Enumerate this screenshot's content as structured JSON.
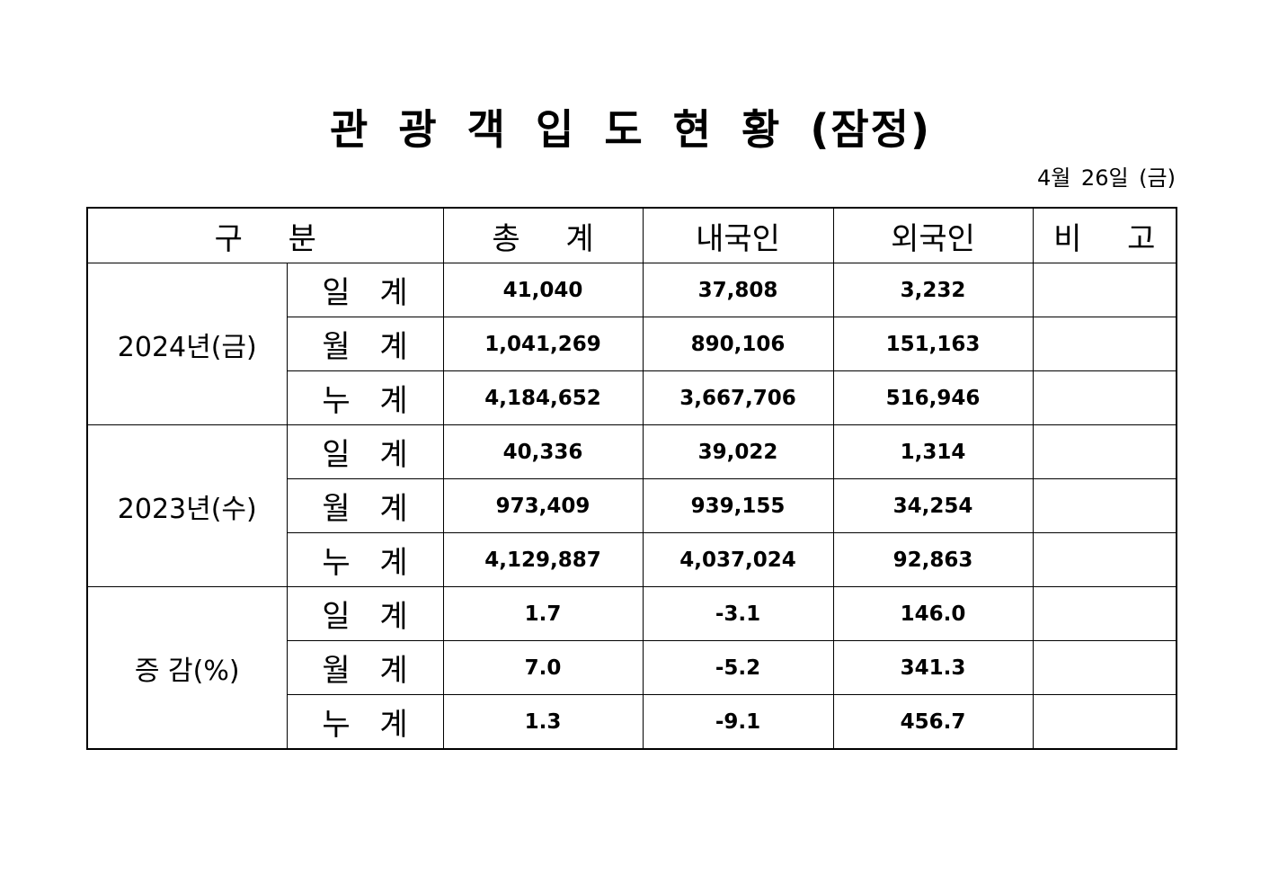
{
  "title": "관 광 객 입 도 현 황 (잠정)",
  "date": "4월 26일 (금)",
  "table": {
    "header": [
      "구 분",
      "총 계",
      "내국인",
      "외국인",
      "비 고"
    ],
    "groups": [
      {
        "label": "2024년(금)",
        "rows": [
          {
            "label": "일 계",
            "values": [
              "41,040",
              "37,808",
              "3,232"
            ]
          },
          {
            "label": "월 계",
            "values": [
              "1,041,269",
              "890,106",
              "151,163"
            ]
          },
          {
            "label": "누 계",
            "values": [
              "4,184,652",
              "3,667,706",
              "516,946"
            ]
          }
        ]
      },
      {
        "label": "2023년(수)",
        "rows": [
          {
            "label": "일 계",
            "values": [
              "40,336",
              "39,022",
              "1,314"
            ]
          },
          {
            "label": "월 계",
            "values": [
              "973,409",
              "939,155",
              "34,254"
            ]
          },
          {
            "label": "누 계",
            "values": [
              "4,129,887",
              "4,037,024",
              "92,863"
            ]
          }
        ]
      },
      {
        "label": "증 감(%)",
        "rows": [
          {
            "label": "일 계",
            "values": [
              "1.7",
              "-3.1",
              "146.0"
            ]
          },
          {
            "label": "월 계",
            "values": [
              "7.0",
              "-5.2",
              "341.3"
            ]
          },
          {
            "label": "누 계",
            "values": [
              "1.3",
              "-9.1",
              "456.7"
            ]
          }
        ]
      }
    ]
  }
}
